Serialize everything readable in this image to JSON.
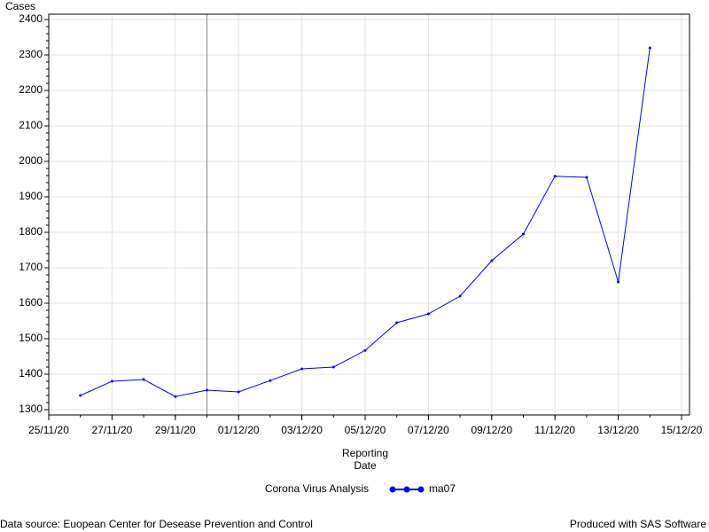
{
  "chart_data": {
    "type": "line",
    "y_label": "Cases",
    "x_label": [
      "Reporting",
      "Date"
    ],
    "legend_title": "Corona Virus Analysis",
    "footnote_left": "Data source: Euopean Center for Desease Prevention and Control",
    "footnote_right": "Produced with SAS Software",
    "x": [
      "26/11/20",
      "27/11/20",
      "28/11/20",
      "29/11/20",
      "30/11/20",
      "01/12/20",
      "02/12/20",
      "03/12/20",
      "04/12/20",
      "05/12/20",
      "06/12/20",
      "07/12/20",
      "08/12/20",
      "09/12/20",
      "10/12/20",
      "11/12/20",
      "12/12/20",
      "13/12/20",
      "14/12/20"
    ],
    "series": [
      {
        "name": "ma07",
        "color": "#0000ff",
        "values": [
          1340,
          1380,
          1385,
          1337,
          1355,
          1350,
          1382,
          1415,
          1420,
          1467,
          1545,
          1570,
          1620,
          1720,
          1795,
          1958,
          1955,
          1660,
          2320
        ]
      }
    ],
    "xlim": [
      "25/11/20",
      "15/12/20"
    ],
    "xticks": [
      "25/11/20",
      "27/11/20",
      "29/11/20",
      "01/12/20",
      "03/12/20",
      "05/12/20",
      "07/12/20",
      "09/12/20",
      "11/12/20",
      "13/12/20",
      "15/12/20"
    ],
    "ylim": [
      1285,
      2415
    ],
    "yticks": [
      1300,
      1400,
      1500,
      1600,
      1700,
      1800,
      1900,
      2000,
      2100,
      2200,
      2300,
      2400
    ],
    "reference_line_x": "30/11/20",
    "grid": true
  }
}
